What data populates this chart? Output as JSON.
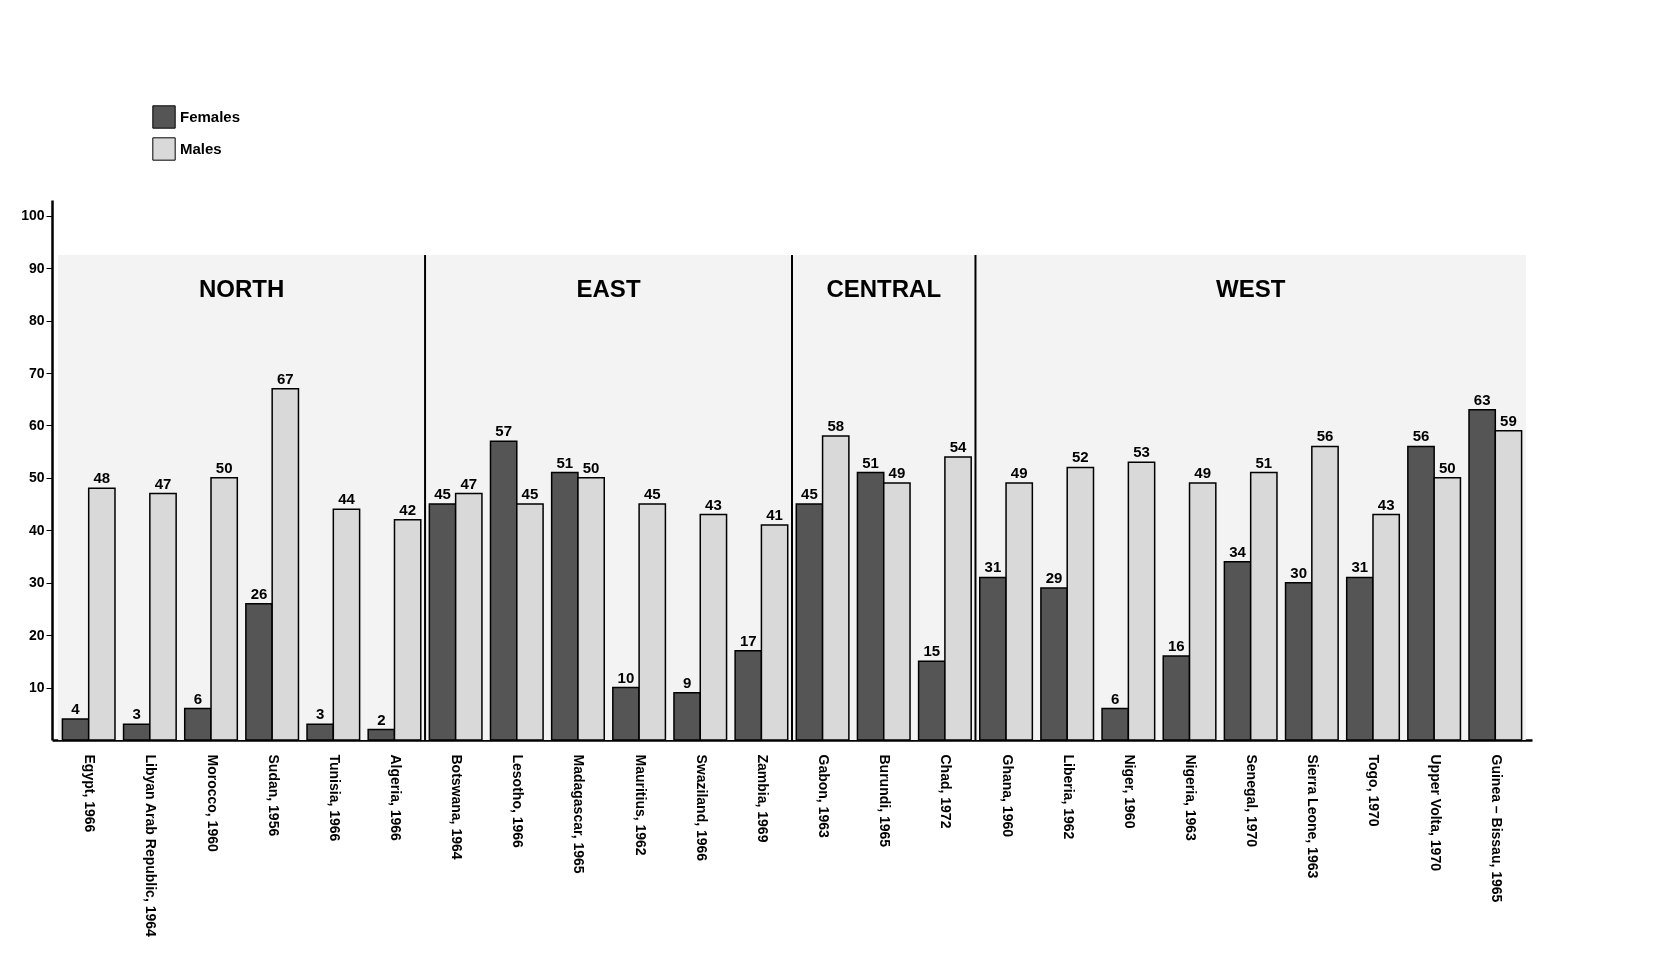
{
  "chart_data": {
    "type": "bar",
    "categories": [
      "Egypt, 1966",
      "Libyan Arab Republic, 1964",
      "Morocco, 1960",
      "Sudan, 1956",
      "Tunisia, 1966",
      "Algeria, 1966",
      "Botswana, 1964",
      "Lesotho, 1966",
      "Madagascar, 1965",
      "Mauritius, 1962",
      "Swaziland, 1966",
      "Zambia, 1969",
      "Gabon, 1963",
      "Burundi, 1965",
      "Chad, 1972",
      "Ghana, 1960",
      "Liberia, 1962",
      "Niger, 1960",
      "Nigeria, 1963",
      "Senegal, 1970",
      "Sierra Leone, 1963",
      "Togo, 1970",
      "Upper Volta, 1970",
      "Guinea – Bissau, 1965"
    ],
    "series": [
      {
        "name": "Females",
        "color": "#555555",
        "values": [
          4,
          3,
          6,
          26,
          3,
          2,
          45,
          57,
          51,
          10,
          9,
          17,
          45,
          51,
          15,
          31,
          29,
          6,
          16,
          34,
          30,
          31,
          56,
          63
        ]
      },
      {
        "name": "Males",
        "color": "#d9d9d9",
        "values": [
          48,
          47,
          50,
          67,
          44,
          42,
          47,
          45,
          50,
          45,
          43,
          41,
          58,
          49,
          54,
          49,
          52,
          53,
          49,
          51,
          56,
          43,
          50,
          59
        ]
      }
    ],
    "bands": [
      {
        "axis": "x",
        "from": "Egypt, 1966",
        "to": "Algeria, 1966",
        "label": "NORTH",
        "color": "#f3f3f3"
      },
      {
        "axis": "x",
        "from": "Botswana, 1964",
        "to": "Zambia, 1969",
        "label": "EAST",
        "color": "#f3f3f3"
      },
      {
        "axis": "x",
        "from": "Gabon, 1963",
        "to": "Chad, 1972",
        "label": "CENTRAL",
        "color": "#f3f3f3"
      },
      {
        "axis": "x",
        "from": "Ghana, 1960",
        "to": "Guinea – Bissau, 1965",
        "label": "WEST",
        "color": "#f3f3f3"
      }
    ],
    "ylim": [
      0,
      103
    ],
    "yticks": [
      10,
      20,
      30,
      40,
      50,
      60,
      70,
      80,
      90,
      100
    ],
    "data_labels": true,
    "grid": false,
    "legend": "top left"
  }
}
